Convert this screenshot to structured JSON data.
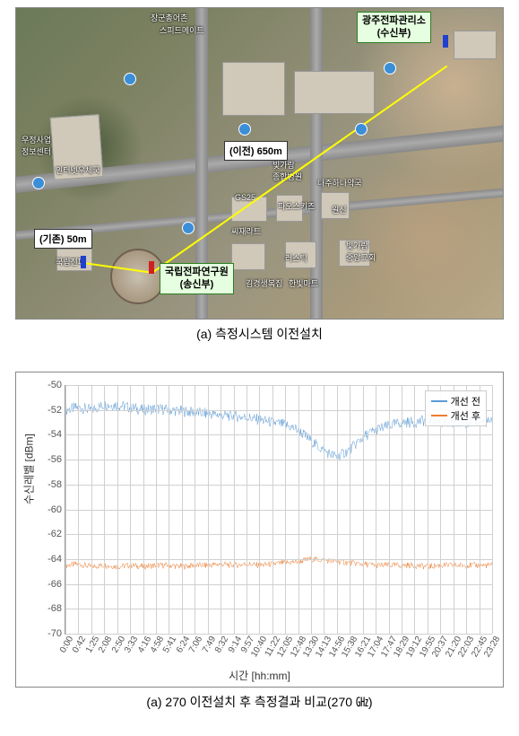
{
  "map": {
    "labels": {
      "receiver": {
        "line1": "광주전파관리소",
        "line2": "(수신부)"
      },
      "transmitter": {
        "line1": "국립전파연구원",
        "line2": "(송신부)"
      },
      "distance_new": "(이전) 650m",
      "distance_old": "(기존) 50m"
    },
    "poi": {
      "top1": "장군총어촌",
      "top2": "스피드메이트",
      "post": "우정사업\n정보센터",
      "internet": "인터넷우체국",
      "gs25": "GS25",
      "comb": "빛가람\n종합병원",
      "haneul": "나주하나약국",
      "paos": "파오스키즈",
      "frat": "씨재라트",
      "frat2": "러스틱",
      "bok": "빛가람\n중앙교회",
      "wonsin": "원신",
      "grp": "국립전파",
      "kim": "김경생복집",
      "han": "한빛마트"
    },
    "caption": "(a) 측정시스템 이전설치",
    "line_color_main": "#ffff00",
    "marker_blue": "#2040d0",
    "marker_red": "#d02020"
  },
  "chart": {
    "type": "line",
    "ylabel": "수신레벨 [dBm]",
    "xlabel": "시간 [hh:mm]",
    "ylim": [
      -70,
      -50
    ],
    "ytick_step": 2,
    "yticks": [
      -50,
      -52,
      -54,
      -56,
      -58,
      -60,
      -62,
      -64,
      -66,
      -68,
      -70
    ],
    "xticks": [
      "0:00",
      "0:42",
      "1:25",
      "2:08",
      "2:50",
      "3:33",
      "4:16",
      "4:58",
      "5:41",
      "6:24",
      "7:06",
      "7:49",
      "8:32",
      "9:14",
      "9:57",
      "10:40",
      "11:22",
      "12:05",
      "12:48",
      "13:30",
      "14:13",
      "14:56",
      "15:38",
      "16:21",
      "17:04",
      "17:47",
      "18:29",
      "19:12",
      "19:55",
      "20:37",
      "21:20",
      "22:03",
      "22:45",
      "23:28"
    ],
    "legend": {
      "before": "개선 전",
      "after": "개선 후"
    },
    "series": {
      "before": {
        "color": "#5b9bd5",
        "base": [
          -52.0,
          -51.8,
          -52.0,
          -51.6,
          -51.6,
          -51.8,
          -52.0,
          -51.9,
          -52.0,
          -52.1,
          -52.2,
          -52.3,
          -52.4,
          -52.5,
          -52.6,
          -52.8,
          -53.0,
          -53.2,
          -53.6,
          -54.5,
          -55.3,
          -55.8,
          -55.2,
          -54.2,
          -53.6,
          -53.3,
          -53.0,
          -53.0,
          -52.8,
          -53.0,
          -53.2,
          -53.0,
          -52.9,
          -53.0
        ],
        "noise_amp": 0.9
      },
      "after": {
        "color": "#ed7d31",
        "base": [
          -64.5,
          -64.4,
          -64.6,
          -64.5,
          -64.6,
          -64.5,
          -64.6,
          -64.5,
          -64.5,
          -64.6,
          -64.5,
          -64.5,
          -64.4,
          -64.5,
          -64.4,
          -64.5,
          -64.4,
          -64.3,
          -64.2,
          -64.0,
          -64.1,
          -64.2,
          -64.3,
          -64.4,
          -64.5,
          -64.5,
          -64.5,
          -64.5,
          -64.6,
          -64.5,
          -64.5,
          -64.5,
          -64.5,
          -64.5
        ],
        "noise_amp": 0.5
      }
    },
    "background_color": "#ffffff",
    "grid_color": "#d0d0d0",
    "caption": "(a) 270 이전설치 후 측정결과 비교(270 ㎓)"
  }
}
